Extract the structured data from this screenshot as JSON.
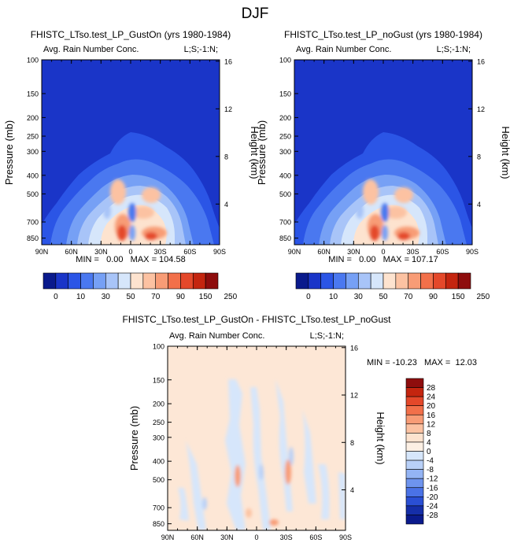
{
  "page_title": "DJF",
  "panels": [
    {
      "title": "FHISTC_LTso.test_LP_GustOn (yrs 1980-1984)",
      "left_label": "Avg. Rain Number Conc.",
      "right_label": "L;S;-1:N;",
      "stats": "MIN =   0.00   MAX = 104.58"
    },
    {
      "title": "FHISTC_LTso.test_LP_noGust (yrs 1980-1984)",
      "left_label": "Avg. Rain Number Conc.",
      "right_label": "L;S;-1:N;",
      "stats": "MIN =   0.00   MAX = 107.17"
    },
    {
      "title": "FHISTC_LTso.test_LP_GustOn - FHISTC_LTso.test_LP_noGust",
      "left_label": "Avg. Rain Number Conc.",
      "right_label": "L;S;-1:N;",
      "stats": "MIN = -10.23   MAX =  12.03"
    }
  ],
  "chart_data": [
    {
      "type": "heatmap",
      "title": "FHISTC_LTso.test_LP_GustOn (yrs 1980-1984)",
      "ylabel": "Pressure (mb)",
      "y2label": "Height (km)",
      "x_ticks": [
        "90N",
        "60N",
        "30N",
        "0",
        "30S",
        "60S",
        "90S"
      ],
      "y_ticks": [
        "100",
        "150",
        "200",
        "250",
        "300",
        "400",
        "500",
        "700",
        "850"
      ],
      "y2_ticks": [
        "16",
        "12",
        "8",
        "4"
      ],
      "min": 0.0,
      "max": 104.58
    },
    {
      "type": "heatmap",
      "title": "FHISTC_LTso.test_LP_noGust (yrs 1980-1984)",
      "ylabel": "Pressure (mb)",
      "y2label": "Height (km)",
      "x_ticks": [
        "90N",
        "60N",
        "30N",
        "0",
        "30S",
        "60S",
        "90S"
      ],
      "y_ticks": [
        "100",
        "150",
        "200",
        "250",
        "300",
        "400",
        "500",
        "700",
        "850"
      ],
      "y2_ticks": [
        "16",
        "12",
        "8",
        "4"
      ],
      "min": 0.0,
      "max": 107.17
    },
    {
      "type": "heatmap",
      "title": "FHISTC_LTso.test_LP_GustOn - FHISTC_LTso.test_LP_noGust",
      "ylabel": "Pressure (mb)",
      "y2label": "Height (km)",
      "x_ticks": [
        "90N",
        "60N",
        "30N",
        "0",
        "30S",
        "60S",
        "90S"
      ],
      "y_ticks": [
        "100",
        "150",
        "200",
        "250",
        "300",
        "400",
        "500",
        "700",
        "850"
      ],
      "y2_ticks": [
        "16",
        "12",
        "8",
        "4"
      ],
      "min": -10.23,
      "max": 12.03
    }
  ],
  "colorbar_abs": {
    "labels": [
      "0",
      "10",
      "30",
      "50",
      "70",
      "90",
      "150",
      "250"
    ],
    "colors": [
      "#0a1a8c",
      "#1a35c8",
      "#2b55e6",
      "#4a78f0",
      "#76a0f5",
      "#a8c4f8",
      "#d6e6fb",
      "#fde3cf",
      "#fcc2a2",
      "#f89c76",
      "#f2704a",
      "#e4482a",
      "#c4250f",
      "#8e0d0d"
    ]
  },
  "colorbar_diff": {
    "labels": [
      "28",
      "24",
      "20",
      "16",
      "12",
      "8",
      "4",
      "0",
      "-4",
      "-8",
      "-12",
      "-16",
      "-20",
      "-24",
      "-28"
    ],
    "colors": [
      "#8e0d0d",
      "#c4250f",
      "#e4482a",
      "#f2704a",
      "#f89c76",
      "#fcc2a2",
      "#fde3cf",
      "#fdf0e4",
      "#d6e6fb",
      "#b8d0f8",
      "#94b4f4",
      "#6e94ee",
      "#4a72e6",
      "#2a4fd4",
      "#152ea8",
      "#0a1a8c"
    ]
  }
}
